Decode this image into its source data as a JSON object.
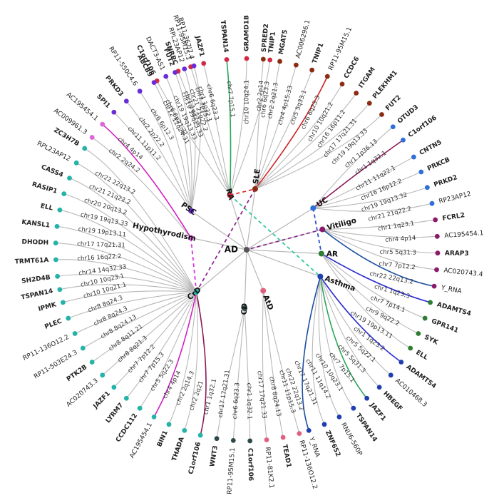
{
  "center": {
    "label": "AD",
    "color": "#555555"
  },
  "diseases": [
    {
      "id": "RA",
      "label": "RA",
      "color": "#d22a45",
      "angle": -107,
      "radius": 80,
      "leaves": [
        {
          "chr": "chr6 6q23.3",
          "gene": "TNIP1",
          "bold": true,
          "a": -83
        },
        {
          "chr": "chr7 7p15.1",
          "gene": "TSPAN14",
          "bold": true,
          "a": -96,
          "edge": "#2aa55a"
        },
        {
          "chr": "chr10 10q24.1",
          "gene": "GRAMD1B",
          "bold": true,
          "a": -90
        },
        {
          "chr": "chr1 1q32.1",
          "gene": "SNRPC",
          "bold": true,
          "a": -111
        },
        {
          "chr": "chr6 6p21.31",
          "gene": "C1orf106",
          "bold": true,
          "a": -118
        },
        {
          "chr": "chr6 6q23.3",
          "gene": "JAZF1",
          "bold": true,
          "a": -103
        },
        {
          "chr": "chr7 7p15.1",
          "gene": "RP11-95M15.1",
          "bold": false,
          "a": -107
        }
      ]
    },
    {
      "id": "SLE",
      "label": "SLE",
      "color": "#8b2d14",
      "angle": -82,
      "radius": 86,
      "leaves": [
        {
          "chr": "chr2 2p14",
          "gene": "SPRED2",
          "bold": true,
          "a": -85
        },
        {
          "chr": "chr2 2q21.3",
          "gene": "MGAT5",
          "bold": true,
          "a": -80
        },
        {
          "chr": "chr4 4p15.33",
          "gene": "AC006296.1",
          "bold": false,
          "a": -75
        },
        {
          "chr": "chr5 5q33.1",
          "gene": "TNIP1",
          "bold": true,
          "a": -70
        },
        {
          "chr": "chr6 6q23.3",
          "gene": "RP11-95M15.1",
          "bold": false,
          "a": -65,
          "edge": "#d02020"
        },
        {
          "chr": "chr10 10q21.2",
          "gene": "CCDC6",
          "bold": true,
          "a": -60
        },
        {
          "chr": "chr16 16p11.2",
          "gene": "ITGAM",
          "bold": true,
          "a": -55
        },
        {
          "chr": "chr17 17q21.31",
          "gene": "PLEKHM1",
          "bold": true,
          "a": -50
        },
        {
          "chr": "chr19 19q13.33",
          "gene": "FUT2",
          "bold": true,
          "a": -45
        }
      ]
    },
    {
      "id": "UC",
      "label": "UC",
      "color": "#2f6fd8",
      "angle": -32,
      "radius": 110,
      "leaves": [
        {
          "chr": "chr1 1p36.13",
          "gene": "OTUD3",
          "bold": true,
          "a": -40
        },
        {
          "chr": "chr1 1q32.1",
          "gene": "C1orf106",
          "bold": true,
          "a": -35,
          "edge": "#8b1a5a"
        },
        {
          "chr": "chr11 11q22.1",
          "gene": "CNTN5",
          "bold": true,
          "a": -29
        },
        {
          "chr": "chr16 16p12.2",
          "gene": "PRKCB",
          "bold": true,
          "a": -24
        },
        {
          "chr": "chr19 19q13.32",
          "gene": "PRKD2",
          "bold": true,
          "a": -19
        },
        {
          "chr": "chr21 21q22.2",
          "gene": "RP23AP12",
          "bold": false,
          "a": -14
        }
      ]
    },
    {
      "id": "Vitiligo",
      "label": "Vitiligo",
      "color": "#8b1a6a",
      "angle": -15,
      "radius": 110,
      "leaves": [
        {
          "chr": "chr1 1q23.1",
          "gene": "FCRL2",
          "bold": true,
          "a": -9
        },
        {
          "chr": "chr4 4p14",
          "gene": "AC195454.1",
          "bold": false,
          "a": -4
        },
        {
          "chr": "chr5 5q31.3",
          "gene": "ARAP3",
          "bold": true,
          "a": 1
        },
        {
          "chr": "chr7 7p12.2",
          "gene": "AC020743.4",
          "bold": false,
          "a": 6
        },
        {
          "chr": "chr22 22q13.2",
          "gene": "Y_RNA",
          "bold": false,
          "a": 11,
          "edge": "#1a4fa0"
        }
      ]
    },
    {
      "id": "AR",
      "label": "AR",
      "color": "#2e7d32",
      "angle": 3,
      "radius": 105,
      "leaves": [
        {
          "chr": "chr1 1q23.3",
          "gene": "ADAMTS4",
          "bold": true,
          "a": 16,
          "edge": "#2a2ad0"
        },
        {
          "chr": "chr7 7p14.1",
          "gene": "GPR141",
          "bold": true,
          "a": 21
        },
        {
          "chr": "chr9 9q22.2",
          "gene": "SYK",
          "bold": true,
          "a": 26
        },
        {
          "chr": "chr19 19p13.11",
          "gene": "ELL",
          "bold": true,
          "a": 31
        }
      ]
    },
    {
      "id": "Asthma",
      "label": "Asthma",
      "color": "#1f3fb0",
      "angle": 20,
      "radius": 110,
      "leaves": [
        {
          "chr": "chr1 1q23.2",
          "gene": "ADAMTS4",
          "bold": true,
          "a": 36,
          "edge": "#2a2ad0"
        },
        {
          "chr": "chr5 5q22.1",
          "gene": "AC010468.3",
          "bold": false,
          "a": 41
        },
        {
          "chr": "chr5 5q31.3",
          "gene": "HBEGF",
          "bold": true,
          "a": 46
        },
        {
          "chr": "chr7 7p15.1",
          "gene": "JAZF1",
          "bold": true,
          "a": 51,
          "edge": "#2aa55a"
        },
        {
          "chr": "chr10 10q23.1",
          "gene": "TSPAN14",
          "bold": true,
          "a": 56
        },
        {
          "chr": "chr11 11q14.2",
          "gene": "RNU6-560P",
          "bold": false,
          "a": 61
        },
        {
          "chr": "chr17 17q21.31",
          "gene": "ZNF652",
          "bold": true,
          "a": 66
        },
        {
          "chr": "chr22 22q13.2",
          "gene": "Y_RNA",
          "bold": false,
          "a": 71,
          "edge": "#1a4fa0"
        }
      ]
    },
    {
      "id": "AtD",
      "label": "AtD",
      "color": "#e06080",
      "angle": 68,
      "radius": 62,
      "leaves": [
        {
          "chr": "chr11 11p15.3",
          "gene": "RP11-136O12.2",
          "bold": false,
          "a": 74
        },
        {
          "chr": "chr8 8q24.13",
          "gene": "TEAD1",
          "bold": true,
          "a": 79
        },
        {
          "chr": "chr17 17q21.33",
          "gene": "RP11-81K2.1",
          "bold": false,
          "a": 84
        }
      ]
    },
    {
      "id": "CD",
      "label": "CD",
      "color": "#2e4a48",
      "angle": 92,
      "radius": 82,
      "leaves": [
        {
          "chr": "chr1 1q32.1",
          "gene": "C1orf106",
          "bold": true,
          "a": 89
        },
        {
          "chr": "chr6 6q23.3",
          "gene": "RP11-95M15.1",
          "bold": false,
          "a": 94
        },
        {
          "chr": "chr17 17q21.31",
          "gene": "WNT3",
          "bold": true,
          "a": 99
        }
      ]
    },
    {
      "id": "CrD",
      "label": "CrD",
      "color": "#23b3a8",
      "angle": 140,
      "radius": 92,
      "leaves": [
        {
          "chr": "chr1 1q32.1",
          "gene": "C1orf106",
          "bold": true,
          "a": 104,
          "edge": "#8b1a5a"
        },
        {
          "chr": "chr2 2q21",
          "gene": "THADA",
          "bold": true,
          "a": 109
        },
        {
          "chr": "chr2 2q14.3",
          "gene": "BIN1",
          "bold": true,
          "a": 114
        },
        {
          "chr": "chr4 4p14",
          "gene": "AC195454.1",
          "bold": false,
          "a": 119,
          "edge": "#d020c0"
        },
        {
          "chr": "chr5 5q22.3",
          "gene": "CCDC112",
          "bold": true,
          "a": 124
        },
        {
          "chr": "chr7 7p15.3",
          "gene": "LYRM7",
          "bold": true,
          "a": 129
        },
        {
          "chr": "chr7 7p12.2",
          "gene": "JAZF1",
          "bold": true,
          "a": 134
        },
        {
          "chr": "chr8 8q21.3",
          "gene": "AC020743.3",
          "bold": false,
          "a": 139
        },
        {
          "chr": "chr8 8q11.21",
          "gene": "PTK2B",
          "bold": true,
          "a": 144
        },
        {
          "chr": "chr8 8q24.13",
          "gene": "RP11-503E24.3",
          "bold": false,
          "a": 149
        },
        {
          "chr": "chr8 8q24.3",
          "gene": "RP11-136O12.2",
          "bold": false,
          "a": 154
        },
        {
          "chr": "chr8 8q24.3",
          "gene": "PLEC",
          "bold": true,
          "a": 159
        },
        {
          "chr": "chr10 10q21.1",
          "gene": "IPMK",
          "bold": true,
          "a": 164
        },
        {
          "chr": "chr10 10q23.1",
          "gene": "TSPAN14",
          "bold": true,
          "a": 168
        },
        {
          "chr": "chr14 14q32.33",
          "gene": "SH2D4B",
          "bold": true,
          "a": 172
        },
        {
          "chr": "chr16 16q22.2",
          "gene": "TRMT61A",
          "bold": true,
          "a": 177
        },
        {
          "chr": "chr17 17q21.31",
          "gene": "DHODH",
          "bold": true,
          "a": 182
        },
        {
          "chr": "chr19 19p13.11",
          "gene": "KANSL1",
          "bold": true,
          "a": 187
        },
        {
          "chr": "chr19 19q13.33",
          "gene": "ELL",
          "bold": true,
          "a": 192
        },
        {
          "chr": "chr20 20q13.2",
          "gene": "RASIP1",
          "bold": true,
          "a": 197
        },
        {
          "chr": "chr21 21q22.2",
          "gene": "CASS4",
          "bold": true,
          "a": 202
        },
        {
          "chr": "chr22 22q13.2",
          "gene": "RPL23AP12",
          "bold": false,
          "a": 207
        },
        {
          "chr": "",
          "gene": "ZC3H7B",
          "bold": true,
          "a": 212
        }
      ]
    },
    {
      "id": "Hypothyrodism",
      "label": "Hypothyrodism",
      "color": "#dd66dd",
      "angle": -168,
      "radius": 80,
      "leaves": [
        {
          "chr": "chr2 2q24.2",
          "gene": "AC009961.3",
          "bold": false,
          "a": 216
        },
        {
          "chr": "chr4 4p14",
          "gene": "AC195454.1",
          "bold": false,
          "a": 221,
          "edge": "#d020c0"
        }
      ]
    },
    {
      "id": "PSC",
      "label": "PSC",
      "color": "#6a2bd8",
      "angle": -145,
      "radius": 95,
      "leaves": [
        {
          "chr": "chr11 11p11.2",
          "gene": "SPI1",
          "bold": true,
          "a": 226
        },
        {
          "chr": "chr2 2p22.2",
          "gene": "PRKD3",
          "bold": true,
          "a": 231
        },
        {
          "chr": "chr6 6p12.3",
          "gene": "RP11-550C4.6",
          "bold": false,
          "a": 236
        },
        {
          "chr": "chr12 12q24.31",
          "gene": "ABCB9",
          "bold": true,
          "a": 241
        },
        {
          "chr": "chr19 19q13.33",
          "gene": "DACT3-AS1",
          "bold": false,
          "a": 245
        },
        {
          "chr": "chr19 19q13.33",
          "gene": "FUT2",
          "bold": true,
          "a": 248
        },
        {
          "chr": "chr21 21q22.2",
          "gene": "RPL23AP12",
          "bold": false,
          "a": 251
        },
        {
          "chr": "chr1 1q32.1",
          "gene": "RP11-367J7.4",
          "bold": false,
          "a": 254
        }
      ]
    }
  ],
  "links": [
    {
      "from": "RA",
      "to": "SLE",
      "color": "#e03030"
    },
    {
      "from": "RA",
      "to": "Asthma",
      "color": "#30c8a0"
    },
    {
      "from": "SLE",
      "to": "CrD",
      "color": "#8b2d8b"
    },
    {
      "from": "UC",
      "to": "AR",
      "color": "#3050d0"
    },
    {
      "from": "Vitiligo",
      "to": "AD",
      "color": "#8b2d8b"
    },
    {
      "from": "Hypothyrodism",
      "to": "CrD",
      "color": "#dd33dd"
    }
  ]
}
